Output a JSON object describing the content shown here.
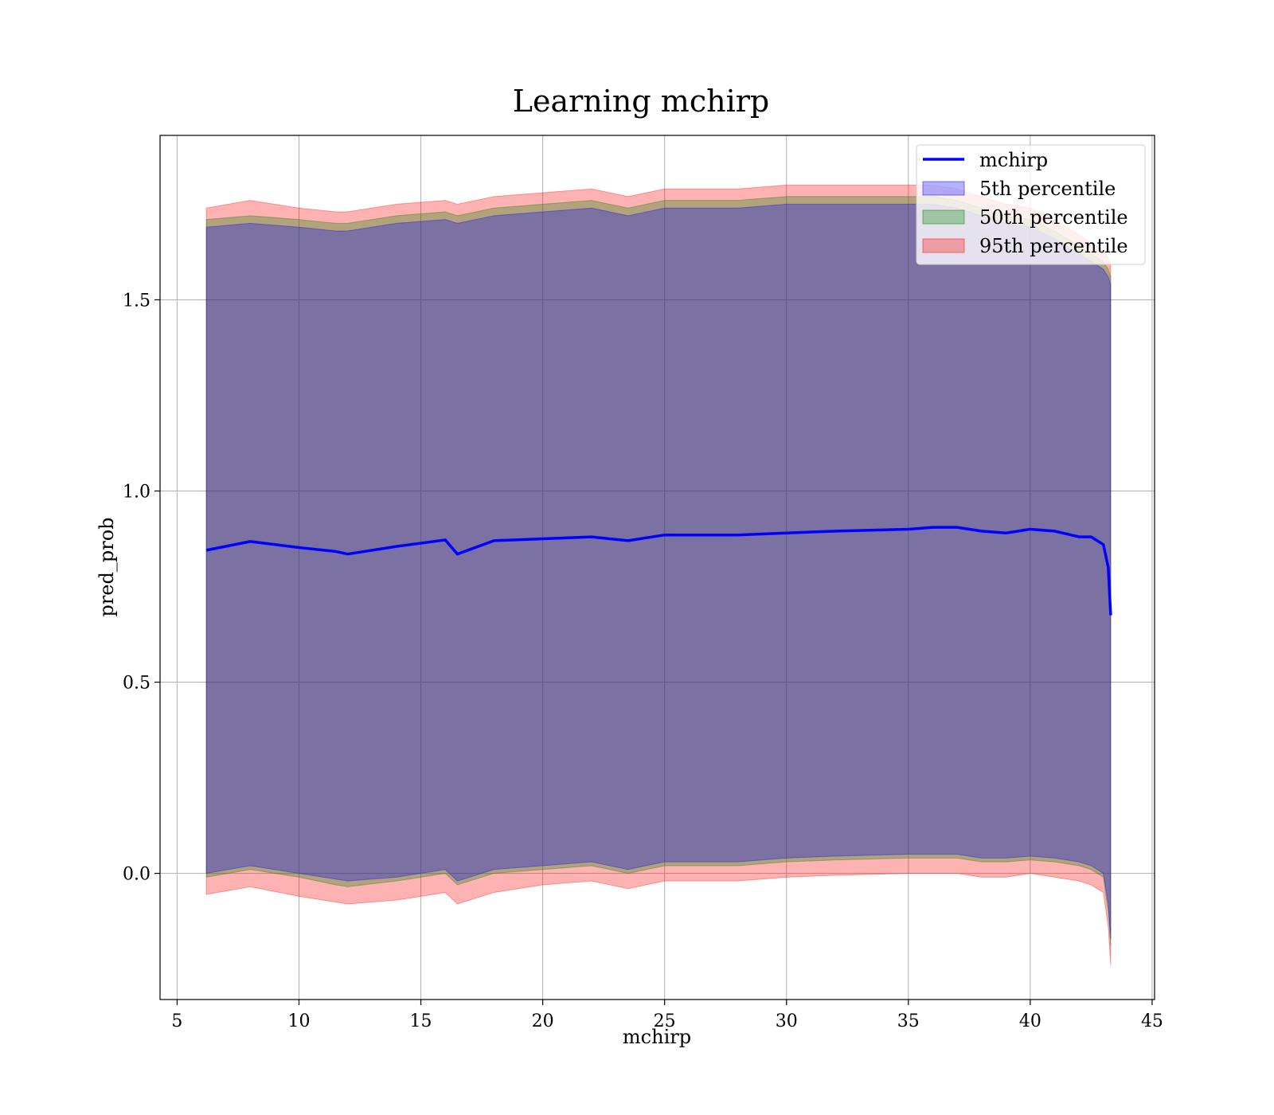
{
  "chart_data": {
    "type": "area",
    "title": "Learning mchirp",
    "xlabel": "mchirp",
    "ylabel": "pred_prob",
    "xlim": [
      4.3,
      45.1
    ],
    "ylim": [
      -0.33,
      1.93
    ],
    "xticks": [
      5,
      10,
      15,
      20,
      25,
      30,
      35,
      40,
      45
    ],
    "yticks": [
      0.0,
      0.5,
      1.0,
      1.5
    ],
    "ytick_labels": [
      "0.0",
      "0.5",
      "1.0",
      "1.5"
    ],
    "grid": true,
    "legend_position": "top-right",
    "x": [
      6.2,
      8,
      10,
      11.5,
      12,
      14,
      16,
      16.5,
      18,
      20,
      22,
      23.5,
      25,
      28,
      30,
      32,
      35,
      36,
      37,
      38,
      39,
      40,
      41,
      42,
      42.5,
      43,
      43.2,
      43.3
    ],
    "line": {
      "name": "mchirp",
      "color": "#0000ff",
      "values": [
        0.845,
        0.868,
        0.852,
        0.842,
        0.835,
        0.855,
        0.872,
        0.835,
        0.87,
        0.875,
        0.88,
        0.87,
        0.885,
        0.885,
        0.89,
        0.895,
        0.9,
        0.905,
        0.905,
        0.895,
        0.89,
        0.9,
        0.895,
        0.88,
        0.88,
        0.86,
        0.8,
        0.675
      ]
    },
    "series": [
      {
        "name": "5th percentile",
        "color": "#0000ff",
        "opacity": 0.3,
        "lower": [
          0.0,
          0.02,
          0.0,
          -0.015,
          -0.02,
          -0.01,
          0.01,
          -0.02,
          0.01,
          0.02,
          0.03,
          0.01,
          0.03,
          0.03,
          0.04,
          0.045,
          0.05,
          0.05,
          0.05,
          0.04,
          0.04,
          0.045,
          0.04,
          0.03,
          0.02,
          0.0,
          -0.08,
          -0.17
        ],
        "upper": [
          1.69,
          1.7,
          1.69,
          1.68,
          1.68,
          1.7,
          1.71,
          1.7,
          1.72,
          1.73,
          1.74,
          1.72,
          1.74,
          1.74,
          1.75,
          1.75,
          1.75,
          1.75,
          1.74,
          1.72,
          1.7,
          1.69,
          1.66,
          1.62,
          1.6,
          1.58,
          1.56,
          1.54
        ]
      },
      {
        "name": "50th percentile",
        "color": "#008000",
        "opacity": 0.3,
        "lower": [
          -0.01,
          0.01,
          -0.01,
          -0.03,
          -0.035,
          -0.02,
          0.0,
          -0.03,
          0.0,
          0.01,
          0.02,
          0.0,
          0.02,
          0.02,
          0.03,
          0.035,
          0.04,
          0.04,
          0.04,
          0.03,
          0.03,
          0.035,
          0.03,
          0.02,
          0.01,
          -0.01,
          -0.1,
          -0.19
        ],
        "upper": [
          1.71,
          1.72,
          1.71,
          1.7,
          1.7,
          1.72,
          1.73,
          1.72,
          1.74,
          1.75,
          1.76,
          1.74,
          1.76,
          1.76,
          1.77,
          1.77,
          1.77,
          1.77,
          1.76,
          1.74,
          1.72,
          1.71,
          1.68,
          1.64,
          1.62,
          1.6,
          1.58,
          1.56
        ]
      },
      {
        "name": "95th percentile",
        "color": "#ff0000",
        "opacity": 0.3,
        "lower": [
          -0.055,
          -0.035,
          -0.06,
          -0.075,
          -0.08,
          -0.07,
          -0.05,
          -0.08,
          -0.05,
          -0.03,
          -0.02,
          -0.04,
          -0.02,
          -0.02,
          -0.01,
          -0.005,
          0.0,
          0.0,
          0.0,
          -0.01,
          -0.01,
          0.0,
          -0.01,
          -0.02,
          -0.03,
          -0.05,
          -0.14,
          -0.24
        ],
        "upper": [
          1.74,
          1.76,
          1.74,
          1.73,
          1.73,
          1.75,
          1.76,
          1.75,
          1.77,
          1.78,
          1.79,
          1.77,
          1.79,
          1.79,
          1.8,
          1.8,
          1.8,
          1.8,
          1.79,
          1.77,
          1.75,
          1.74,
          1.71,
          1.67,
          1.65,
          1.63,
          1.61,
          1.59
        ]
      }
    ]
  }
}
